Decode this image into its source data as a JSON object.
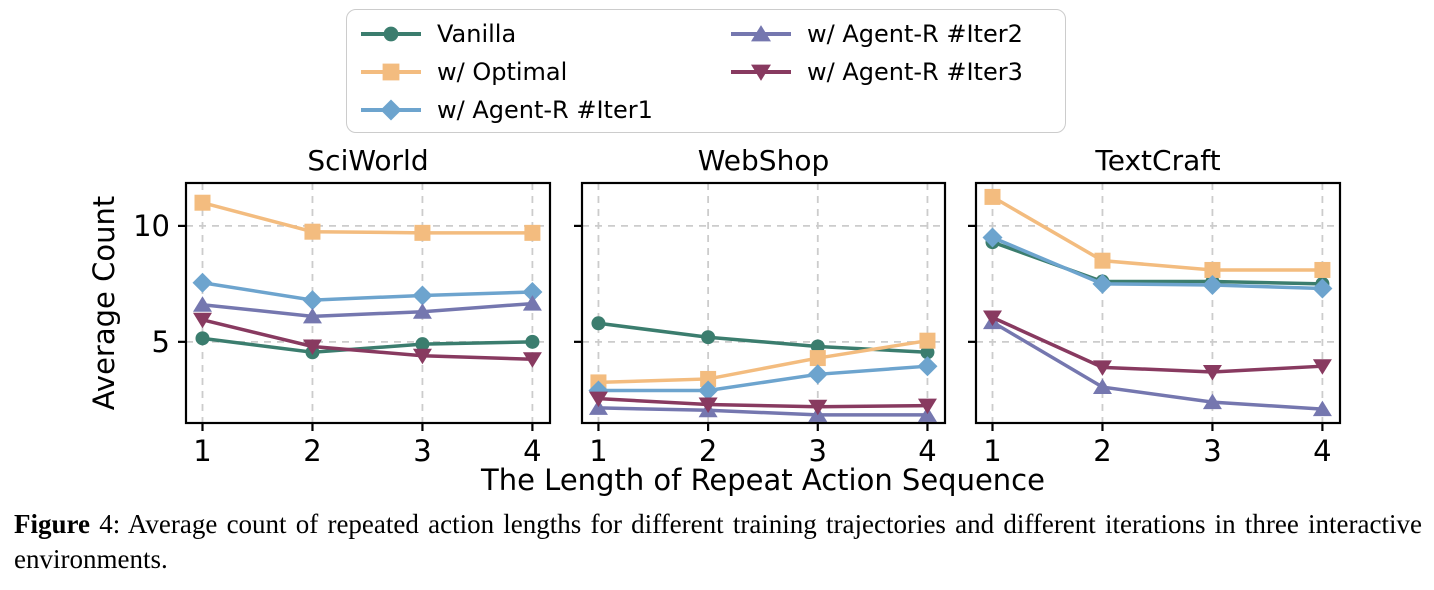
{
  "figure": {
    "y_label": "Average Count",
    "x_label": "The Length of Repeat Action Sequence",
    "x_ticks": [
      1,
      2,
      3,
      4
    ],
    "y_ticks": [
      5,
      10
    ],
    "xlim": [
      0.85,
      4.16
    ],
    "ylim": [
      1.5,
      11.85
    ],
    "grid_color": "#cccccc",
    "axis_color": "#000000",
    "legend_border_color": "#cccccc"
  },
  "legend": {
    "position": "top-center",
    "entries": [
      {
        "label": "Vanilla",
        "color": "#3B7D6E",
        "marker": "circle"
      },
      {
        "label": "w/ Optimal",
        "color": "#F3BC7F",
        "marker": "square"
      },
      {
        "label": "w/ Agent-R #Iter1",
        "color": "#6DA4CE",
        "marker": "diamond"
      },
      {
        "label": "w/ Agent-R #Iter2",
        "color": "#7577AF",
        "marker": "triangle-up"
      },
      {
        "label": "w/ Agent-R #Iter3",
        "color": "#883A60",
        "marker": "triangle-down"
      }
    ]
  },
  "chart_data": [
    {
      "type": "line",
      "title": "SciWorld",
      "x": [
        1,
        2,
        3,
        4
      ],
      "series": [
        {
          "name": "Vanilla",
          "values": [
            5.15,
            4.55,
            4.9,
            5.0
          ]
        },
        {
          "name": "w/ Optimal",
          "values": [
            11.0,
            9.75,
            9.7,
            9.7
          ]
        },
        {
          "name": "w/ Agent-R #Iter1",
          "values": [
            7.55,
            6.8,
            7.0,
            7.15
          ]
        },
        {
          "name": "w/ Agent-R #Iter2",
          "values": [
            6.6,
            6.1,
            6.3,
            6.65
          ]
        },
        {
          "name": "w/ Agent-R #Iter3",
          "values": [
            5.95,
            4.8,
            4.4,
            4.25
          ]
        }
      ],
      "xlabel": "The Length of Repeat Action Sequence",
      "ylabel": "Average Count",
      "ylim": [
        1.5,
        11.85
      ],
      "yticks": [
        5,
        10
      ],
      "grid": true,
      "show_y_labels": true
    },
    {
      "type": "line",
      "title": "WebShop",
      "x": [
        1,
        2,
        3,
        4
      ],
      "series": [
        {
          "name": "Vanilla",
          "values": [
            5.8,
            5.2,
            4.8,
            4.55
          ]
        },
        {
          "name": "w/ Optimal",
          "values": [
            3.25,
            3.4,
            4.3,
            5.05
          ]
        },
        {
          "name": "w/ Agent-R #Iter1",
          "values": [
            2.9,
            2.9,
            3.6,
            3.95
          ]
        },
        {
          "name": "w/ Agent-R #Iter2",
          "values": [
            2.15,
            2.05,
            1.85,
            1.85
          ]
        },
        {
          "name": "w/ Agent-R #Iter3",
          "values": [
            2.55,
            2.3,
            2.2,
            2.25
          ]
        }
      ],
      "xlabel": "The Length of Repeat Action Sequence",
      "ylabel": "Average Count",
      "ylim": [
        1.5,
        11.85
      ],
      "yticks": [
        5,
        10
      ],
      "grid": true,
      "show_y_labels": false
    },
    {
      "type": "line",
      "title": "TextCraft",
      "x": [
        1,
        2,
        3,
        4
      ],
      "series": [
        {
          "name": "Vanilla",
          "values": [
            9.3,
            7.6,
            7.6,
            7.5
          ]
        },
        {
          "name": "w/ Optimal",
          "values": [
            11.25,
            8.5,
            8.1,
            8.1
          ]
        },
        {
          "name": "w/ Agent-R #Iter1",
          "values": [
            9.5,
            7.5,
            7.45,
            7.3
          ]
        },
        {
          "name": "w/ Agent-R #Iter2",
          "values": [
            5.85,
            3.05,
            2.4,
            2.1
          ]
        },
        {
          "name": "w/ Agent-R #Iter3",
          "values": [
            6.05,
            3.9,
            3.7,
            3.95
          ]
        }
      ],
      "xlabel": "The Length of Repeat Action Sequence",
      "ylabel": "Average Count",
      "ylim": [
        1.5,
        11.85
      ],
      "yticks": [
        5,
        10
      ],
      "grid": true,
      "show_y_labels": false
    }
  ],
  "caption": {
    "figure_label": "Figure",
    "text": " 4: Average count of repeated action lengths for different training trajectories and different iterations in three interactive environments."
  }
}
